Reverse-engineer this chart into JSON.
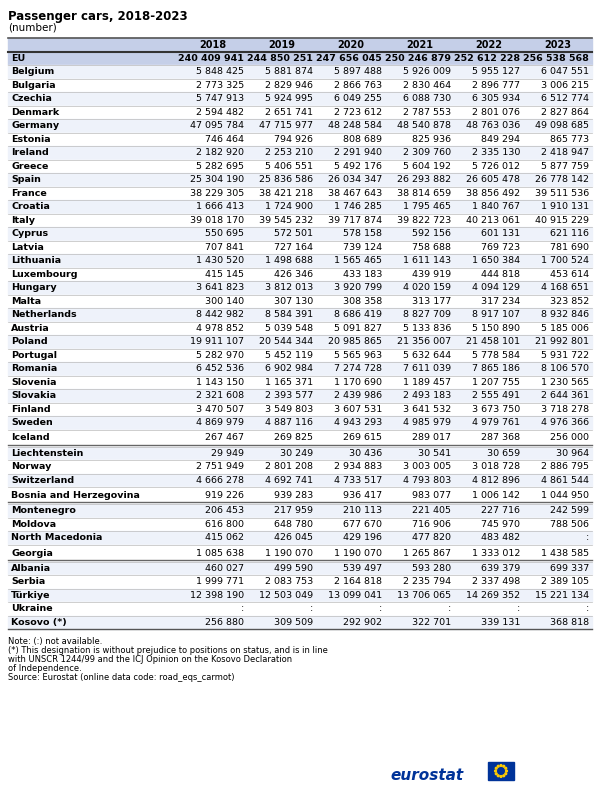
{
  "title": "Passenger cars, 2018-2023",
  "subtitle": "(number)",
  "columns": [
    "",
    "2018",
    "2019",
    "2020",
    "2021",
    "2022",
    "2023"
  ],
  "rows": [
    [
      "EU",
      "240 409 941",
      "244 850 251",
      "247 656 045",
      "250 246 879",
      "252 612 228",
      "256 538 568"
    ],
    [
      "Belgium",
      "5 848 425",
      "5 881 874",
      "5 897 488",
      "5 926 009",
      "5 955 127",
      "6 047 551"
    ],
    [
      "Bulgaria",
      "2 773 325",
      "2 829 946",
      "2 866 763",
      "2 830 464",
      "2 896 777",
      "3 006 215"
    ],
    [
      "Czechia",
      "5 747 913",
      "5 924 995",
      "6 049 255",
      "6 088 730",
      "6 305 934",
      "6 512 774"
    ],
    [
      "Denmark",
      "2 594 482",
      "2 651 741",
      "2 723 612",
      "2 787 553",
      "2 801 076",
      "2 827 864"
    ],
    [
      "Germany",
      "47 095 784",
      "47 715 977",
      "48 248 584",
      "48 540 878",
      "48 763 036",
      "49 098 685"
    ],
    [
      "Estonia",
      "746 464",
      "794 926",
      "808 689",
      "825 936",
      "849 294",
      "865 773"
    ],
    [
      "Ireland",
      "2 182 920",
      "2 253 210",
      "2 291 940",
      "2 309 760",
      "2 335 130",
      "2 418 947"
    ],
    [
      "Greece",
      "5 282 695",
      "5 406 551",
      "5 492 176",
      "5 604 192",
      "5 726 012",
      "5 877 759"
    ],
    [
      "Spain",
      "25 304 190",
      "25 836 586",
      "26 034 347",
      "26 293 882",
      "26 605 478",
      "26 778 142"
    ],
    [
      "France",
      "38 229 305",
      "38 421 218",
      "38 467 643",
      "38 814 659",
      "38 856 492",
      "39 511 536"
    ],
    [
      "Croatia",
      "1 666 413",
      "1 724 900",
      "1 746 285",
      "1 795 465",
      "1 840 767",
      "1 910 131"
    ],
    [
      "Italy",
      "39 018 170",
      "39 545 232",
      "39 717 874",
      "39 822 723",
      "40 213 061",
      "40 915 229"
    ],
    [
      "Cyprus",
      "550 695",
      "572 501",
      "578 158",
      "592 156",
      "601 131",
      "621 116"
    ],
    [
      "Latvia",
      "707 841",
      "727 164",
      "739 124",
      "758 688",
      "769 723",
      "781 690"
    ],
    [
      "Lithuania",
      "1 430 520",
      "1 498 688",
      "1 565 465",
      "1 611 143",
      "1 650 384",
      "1 700 524"
    ],
    [
      "Luxembourg",
      "415 145",
      "426 346",
      "433 183",
      "439 919",
      "444 818",
      "453 614"
    ],
    [
      "Hungary",
      "3 641 823",
      "3 812 013",
      "3 920 799",
      "4 020 159",
      "4 094 129",
      "4 168 651"
    ],
    [
      "Malta",
      "300 140",
      "307 130",
      "308 358",
      "313 177",
      "317 234",
      "323 852"
    ],
    [
      "Netherlands",
      "8 442 982",
      "8 584 391",
      "8 686 419",
      "8 827 709",
      "8 917 107",
      "8 932 846"
    ],
    [
      "Austria",
      "4 978 852",
      "5 039 548",
      "5 091 827",
      "5 133 836",
      "5 150 890",
      "5 185 006"
    ],
    [
      "Poland",
      "19 911 107",
      "20 544 344",
      "20 985 865",
      "21 356 007",
      "21 458 101",
      "21 992 801"
    ],
    [
      "Portugal",
      "5 282 970",
      "5 452 119",
      "5 565 963",
      "5 632 644",
      "5 778 584",
      "5 931 722"
    ],
    [
      "Romania",
      "6 452 536",
      "6 902 984",
      "7 274 728",
      "7 611 039",
      "7 865 186",
      "8 106 570"
    ],
    [
      "Slovenia",
      "1 143 150",
      "1 165 371",
      "1 170 690",
      "1 189 457",
      "1 207 755",
      "1 230 565"
    ],
    [
      "Slovakia",
      "2 321 608",
      "2 393 577",
      "2 439 986",
      "2 493 183",
      "2 555 491",
      "2 644 361"
    ],
    [
      "Finland",
      "3 470 507",
      "3 549 803",
      "3 607 531",
      "3 641 532",
      "3 673 750",
      "3 718 278"
    ],
    [
      "Sweden",
      "4 869 979",
      "4 887 116",
      "4 943 293",
      "4 985 979",
      "4 979 761",
      "4 976 366"
    ],
    [
      "Iceland",
      "267 467",
      "269 825",
      "269 615",
      "289 017",
      "287 368",
      "256 000"
    ],
    [
      "Liechtenstein",
      "29 949",
      "30 249",
      "30 436",
      "30 541",
      "30 659",
      "30 964"
    ],
    [
      "Norway",
      "2 751 949",
      "2 801 208",
      "2 934 883",
      "3 003 005",
      "3 018 728",
      "2 886 795"
    ],
    [
      "Switzerland",
      "4 666 278",
      "4 692 741",
      "4 733 517",
      "4 793 803",
      "4 812 896",
      "4 861 544"
    ],
    [
      "Bosnia and Herzegovina",
      "919 226",
      "939 283",
      "936 417",
      "983 077",
      "1 006 142",
      "1 044 950"
    ],
    [
      "Montenegro",
      "206 453",
      "217 959",
      "210 113",
      "221 405",
      "227 716",
      "242 599"
    ],
    [
      "Moldova",
      "616 800",
      "648 780",
      "677 670",
      "716 906",
      "745 970",
      "788 506"
    ],
    [
      "North Macedonia",
      "415 062",
      "426 045",
      "429 196",
      "477 820",
      "483 482",
      ":"
    ],
    [
      "Georgia",
      "1 085 638",
      "1 190 070",
      "1 190 070",
      "1 265 867",
      "1 333 012",
      "1 438 585"
    ],
    [
      "Albania",
      "460 027",
      "499 590",
      "539 497",
      "593 280",
      "639 379",
      "699 337"
    ],
    [
      "Serbia",
      "1 999 771",
      "2 083 753",
      "2 164 818",
      "2 235 794",
      "2 337 498",
      "2 389 105"
    ],
    [
      "Türkiye",
      "12 398 190",
      "12 503 049",
      "13 099 041",
      "13 706 065",
      "14 269 352",
      "15 221 134"
    ],
    [
      "Ukraine",
      ":",
      ":",
      ":",
      ":",
      ":",
      ":"
    ],
    [
      "Kosovo (*)",
      "256 880",
      "309 509",
      "292 902",
      "322 701",
      "339 131",
      "368 818"
    ]
  ],
  "header_bg": "#c5cfe8",
  "eu_row_bg": "#c5cfe8",
  "separator_after_rows": [
    28,
    32,
    36
  ],
  "note_text1": "Note: (:) not available.",
  "note_text2": "(*) This designation is without prejudice to positions on status, and is in line",
  "note_text3": "with UNSCR 1244/99 and the ICJ Opinion on the Kosovo Declaration",
  "note_text4": "of Independence.",
  "note_text5": "Source: Eurostat (online data code: road_eqs_carmot)",
  "eurostat_color": "#003399"
}
